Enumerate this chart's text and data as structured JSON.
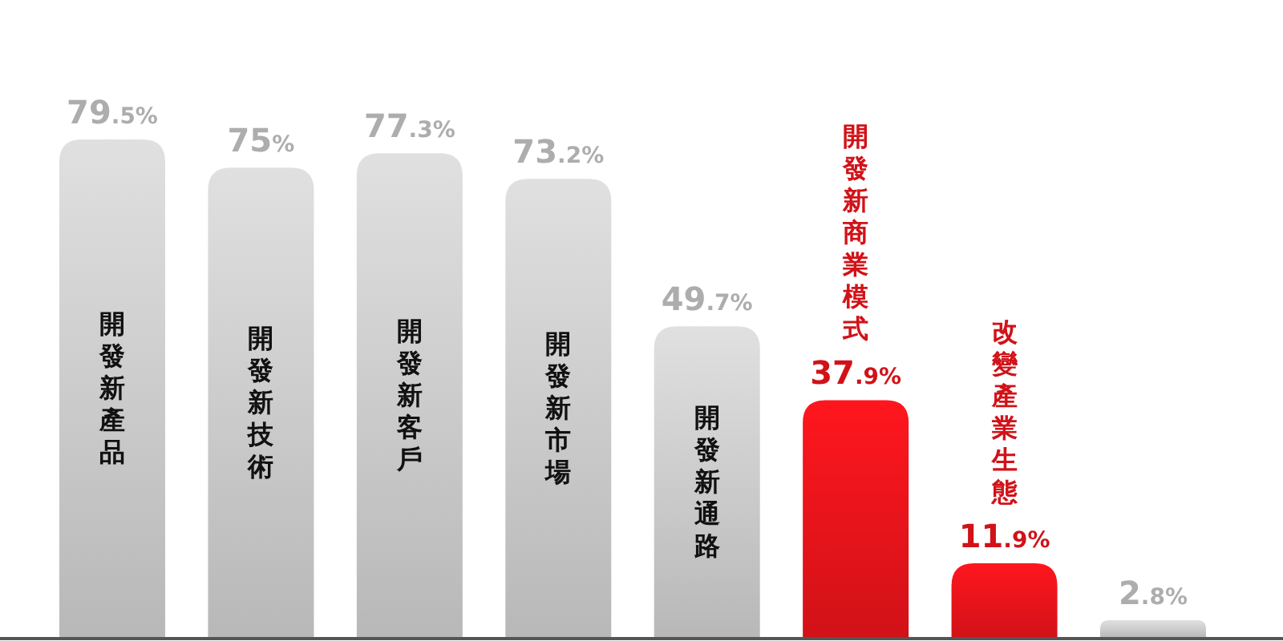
{
  "chart_data": {
    "type": "bar",
    "categories": [
      "開發新產品",
      "開發新技術",
      "開發新客戶",
      "開發新市場",
      "開發新通路",
      "開發新商業模式",
      "改變產業生態",
      null
    ],
    "values": [
      79.5,
      75,
      77.3,
      73.2,
      49.7,
      37.9,
      11.9,
      2.8
    ],
    "value_labels": [
      "79.5%",
      "75%",
      "77.3%",
      "73.2%",
      "49.7%",
      "37.9%",
      "11.9%",
      "2.8%"
    ],
    "colors": [
      "#cccccc",
      "#cccccc",
      "#cccccc",
      "#cccccc",
      "#cccccc",
      "#e8141b",
      "#e8141b",
      "#cccccc"
    ]
  }
}
